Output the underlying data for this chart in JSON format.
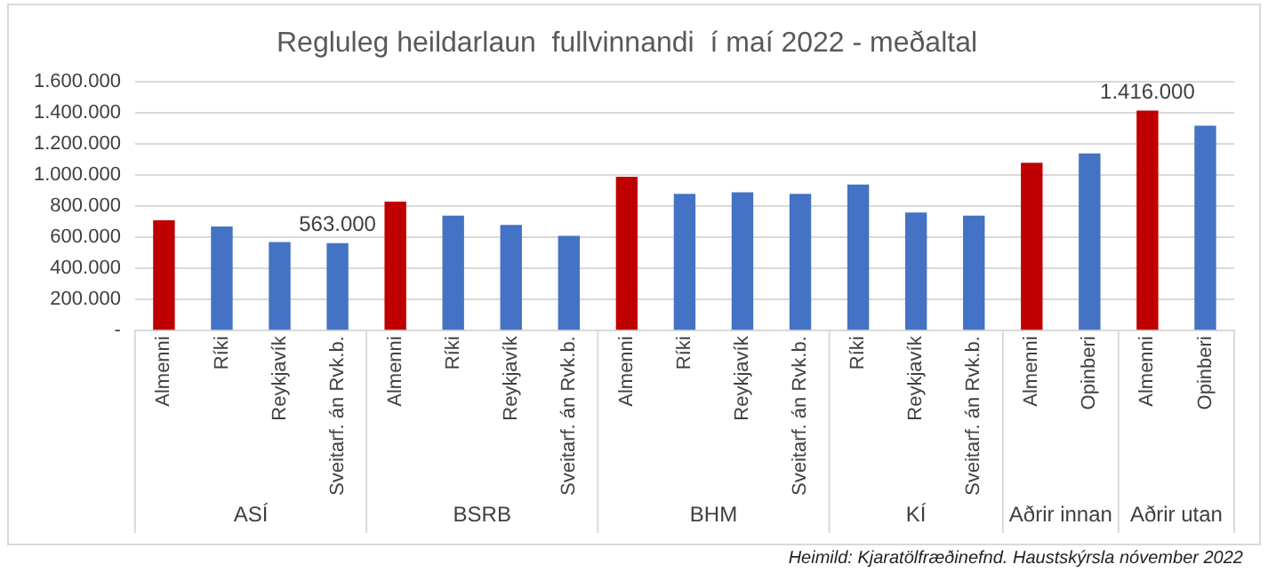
{
  "chart_data": {
    "type": "bar",
    "title": "Regluleg heildarlaun  fullvinnandi  í maí 2022 - meðaltal",
    "categories": [
      "Almenni",
      "Ríki",
      "Reykjavík",
      "Sveitarf. án Rvk.b.",
      "Almenni",
      "Ríki",
      "Reykjavík",
      "Sveitarf. án Rvk.b.",
      "Almenni",
      "Ríki",
      "Reykjavík",
      "Sveitarf. án Rvk.b.",
      "Ríki",
      "Reykjavík",
      "Sveitarf. án Rvk.b.",
      "Almenni",
      "Opinberi",
      "Almenni",
      "Opinberi"
    ],
    "values": [
      710000,
      670000,
      570000,
      563000,
      830000,
      740000,
      680000,
      610000,
      990000,
      880000,
      890000,
      880000,
      940000,
      760000,
      740000,
      1080000,
      1140000,
      1416000,
      1320000
    ],
    "value_labels": [
      null,
      null,
      null,
      "563.000",
      null,
      null,
      null,
      null,
      null,
      null,
      null,
      null,
      null,
      null,
      null,
      null,
      null,
      "1.416.000",
      null
    ],
    "colors": [
      "#c00000",
      "#4472c4",
      "#4472c4",
      "#4472c4",
      "#c00000",
      "#4472c4",
      "#4472c4",
      "#4472c4",
      "#c00000",
      "#4472c4",
      "#4472c4",
      "#4472c4",
      "#4472c4",
      "#4472c4",
      "#4472c4",
      "#c00000",
      "#4472c4",
      "#c00000",
      "#4472c4"
    ],
    "ylim": [
      0,
      1600000
    ],
    "yticks": [
      {
        "value": 0,
        "label": "-"
      },
      {
        "value": 200000,
        "label": "200.000"
      },
      {
        "value": 400000,
        "label": "400.000"
      },
      {
        "value": 600000,
        "label": "600.000"
      },
      {
        "value": 800000,
        "label": "800.000"
      },
      {
        "value": 1000000,
        "label": "1.000.000"
      },
      {
        "value": 1200000,
        "label": "1.200.000"
      },
      {
        "value": 1400000,
        "label": "1.400.000"
      },
      {
        "value": 1600000,
        "label": "1.600.000"
      }
    ],
    "grid": "y",
    "annotations": [
      "ASÍ",
      "BSRB",
      "BHM",
      "KÍ",
      "Aðrir innan",
      "Aðrir utan",
      "Heimild: Kjaratölfræðinefnd. Haustskýrsla nóvember 2022"
    ]
  }
}
